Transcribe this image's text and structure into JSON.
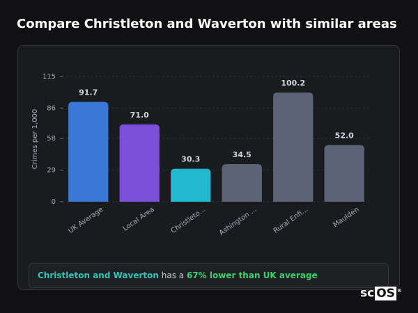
{
  "chart_data": {
    "type": "bar",
    "title": "Compare Christleton and Waverton with similar areas",
    "y_label": "Crimes per 1,000",
    "categories": [
      "UK Average",
      "Local Area",
      "Christleto...",
      "Ashington ...",
      "Rural Enfi...",
      "Maulden"
    ],
    "values": [
      91.7,
      71.0,
      30.3,
      34.5,
      100.2,
      52.0
    ],
    "value_labels": [
      "91.7",
      "71.0",
      "30.3",
      "34.5",
      "100.2",
      "52.0"
    ],
    "colors": [
      "#3a78d8",
      "#7b4fd8",
      "#22b8cf",
      "#5b6475",
      "#5b6475",
      "#5b6475"
    ],
    "ylim": [
      0,
      115
    ],
    "yticks": [
      0,
      29,
      58,
      86,
      115
    ],
    "grid": true
  },
  "summary": {
    "place": "Christleton and Waverton",
    "connector": "has a",
    "comparison": "67% lower than UK average"
  },
  "logo": {
    "prefix": "sc",
    "suffix": "OS"
  }
}
